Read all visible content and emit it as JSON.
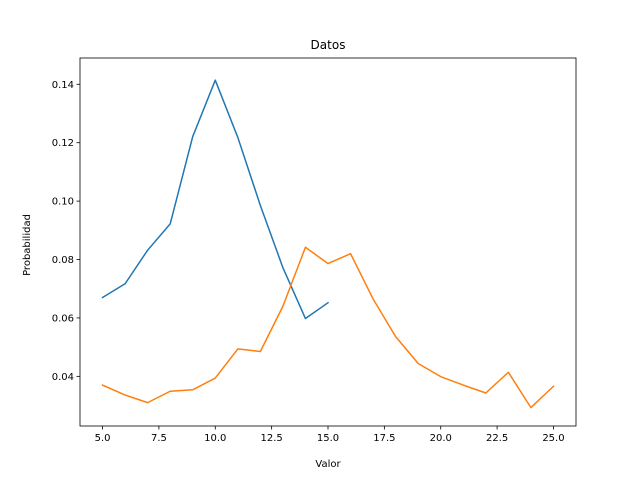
{
  "chart_data": {
    "type": "line",
    "title": "Datos",
    "xlabel": "Valor",
    "ylabel": "Probabilidad",
    "xlim": [
      4.0,
      26.0
    ],
    "ylim": [
      0.023,
      0.149
    ],
    "xticks": [
      5.0,
      7.5,
      10.0,
      12.5,
      15.0,
      17.5,
      20.0,
      22.5,
      25.0
    ],
    "xtick_labels": [
      "5.0",
      "7.5",
      "10.0",
      "12.5",
      "15.0",
      "17.5",
      "20.0",
      "22.5",
      "25.0"
    ],
    "yticks": [
      0.04,
      0.06,
      0.08,
      0.1,
      0.12,
      0.14
    ],
    "ytick_labels": [
      "0.04",
      "0.06",
      "0.08",
      "0.10",
      "0.12",
      "0.14"
    ],
    "grid": false,
    "legend": null,
    "series": [
      {
        "color": "#1f77b4",
        "x": [
          5,
          6,
          7,
          8,
          9,
          10,
          11,
          12,
          13,
          14,
          15
        ],
        "y": [
          0.067,
          0.0717,
          0.0832,
          0.0922,
          0.1221,
          0.1414,
          0.1218,
          0.0985,
          0.0772,
          0.0598,
          0.0652
        ]
      },
      {
        "color": "#ff7f0e",
        "x": [
          5,
          6,
          7,
          8,
          9,
          10,
          11,
          12,
          13,
          14,
          15,
          16,
          17,
          18,
          19,
          20,
          21,
          22,
          23,
          24,
          25
        ],
        "y": [
          0.037,
          0.0336,
          0.031,
          0.0349,
          0.0354,
          0.0394,
          0.0494,
          0.0485,
          0.064,
          0.0842,
          0.0786,
          0.082,
          0.0665,
          0.0536,
          0.0444,
          0.0399,
          0.037,
          0.0343,
          0.0414,
          0.0293,
          0.0366
        ]
      }
    ]
  }
}
